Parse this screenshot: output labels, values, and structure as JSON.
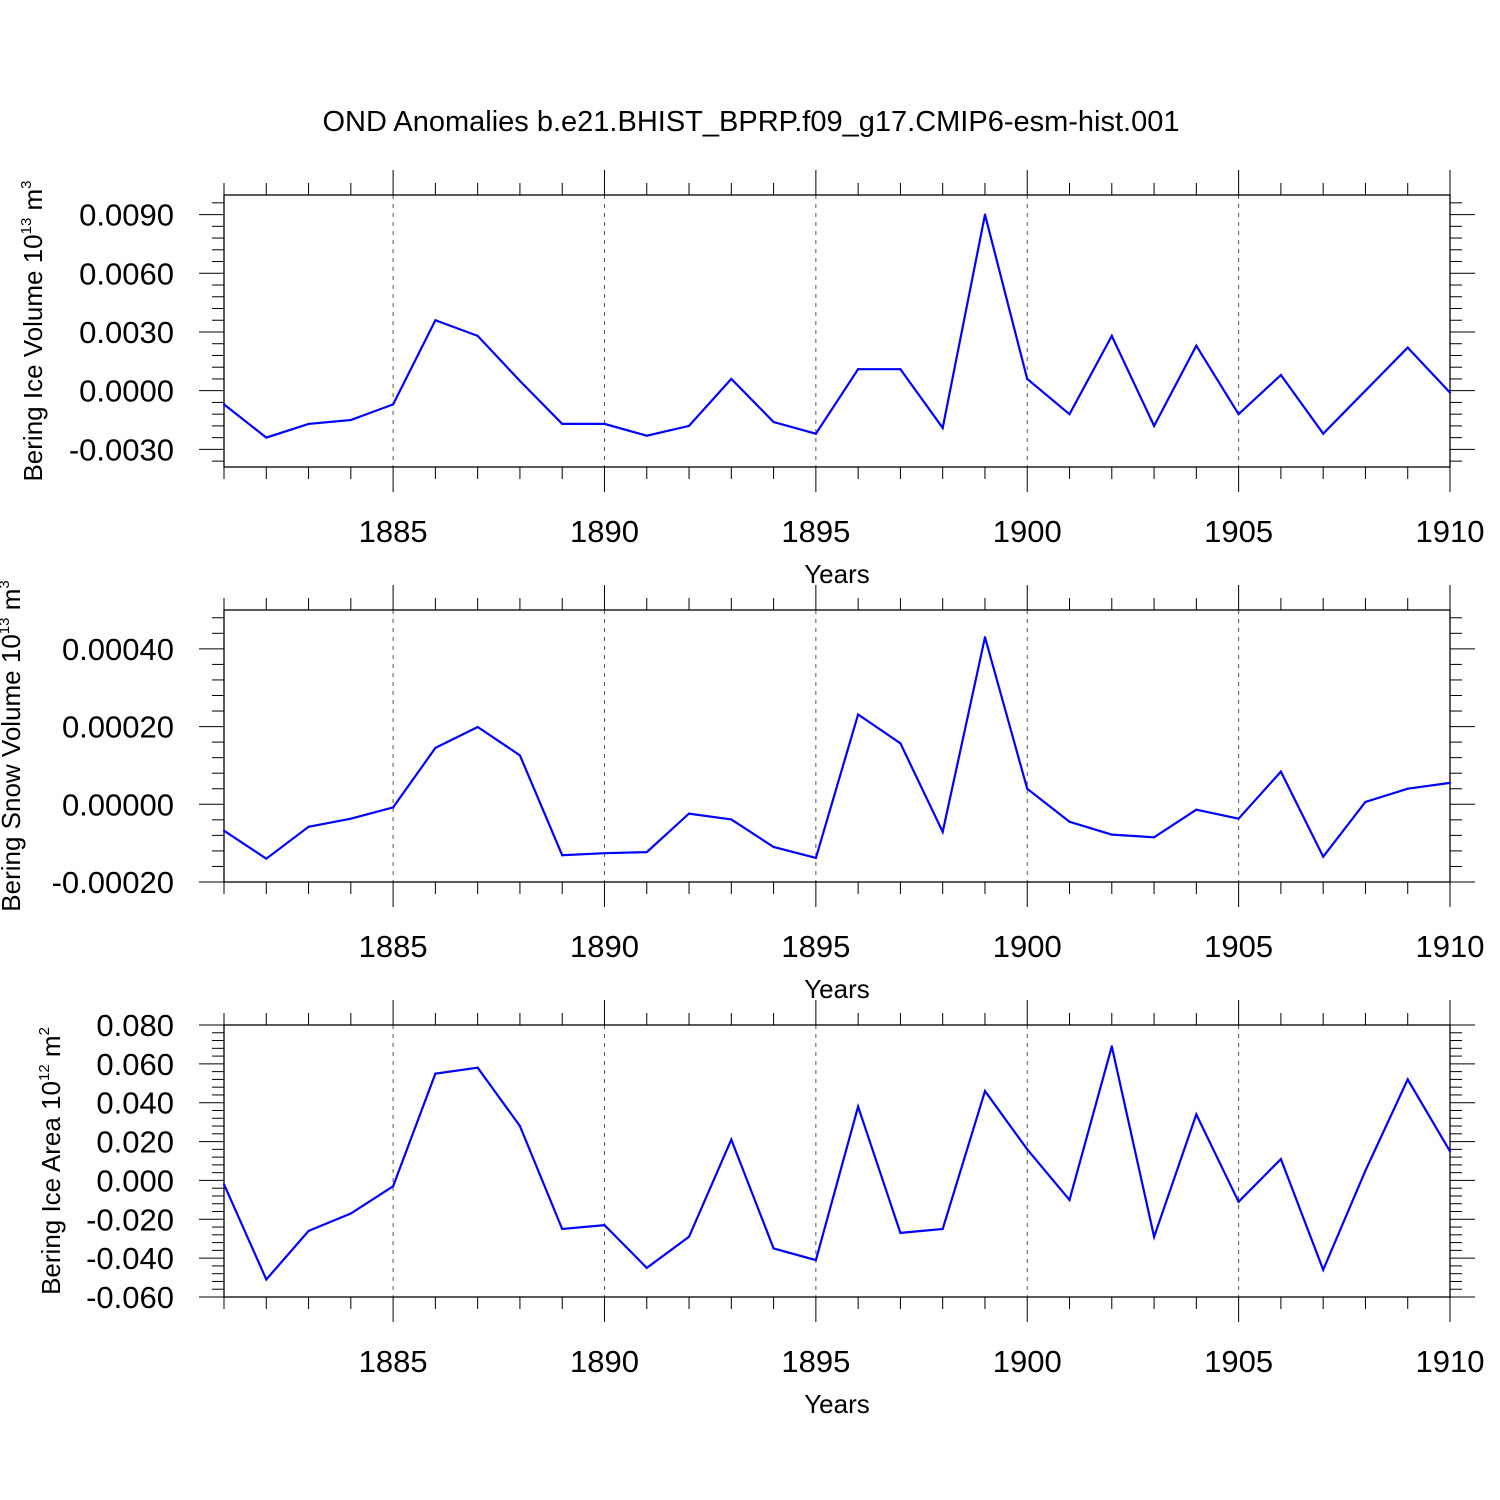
{
  "title": "OND Anomalies b.e21.BHIST_BPRP.f09_g17.CMIP6-esm-hist.001",
  "colors": {
    "series": "#0000ff",
    "axis": "#000000",
    "grid": "#555555"
  },
  "chart_data": [
    {
      "type": "line",
      "ylabel": {
        "main": "Bering Ice Volume 10",
        "sup": "13",
        "unit": " m",
        "unit_sup": "3"
      },
      "xlabel": "Years",
      "xlim": [
        1881,
        1910
      ],
      "ylim": [
        -0.0039,
        0.01
      ],
      "yticks": [
        -0.003,
        0.0,
        0.003,
        0.006,
        0.009
      ],
      "ytick_labels": [
        "-0.0030",
        "0.0000",
        "0.0030",
        "0.0060",
        "0.0090"
      ],
      "yminor_step": 0.0006,
      "xticks": [
        1885,
        1890,
        1895,
        1900,
        1905,
        1910
      ],
      "xtick_labels": [
        "1885",
        "1890",
        "1895",
        "1900",
        "1905",
        "1910"
      ],
      "x": [
        1881,
        1882,
        1883,
        1884,
        1885,
        1886,
        1887,
        1888,
        1889,
        1890,
        1891,
        1892,
        1893,
        1894,
        1895,
        1896,
        1897,
        1898,
        1899,
        1900,
        1901,
        1902,
        1903,
        1904,
        1905,
        1906,
        1907,
        1908,
        1909,
        1910
      ],
      "series": [
        {
          "name": "Bering Ice Volume",
          "values": [
            -0.0007,
            -0.0024,
            -0.0017,
            -0.0015,
            -0.0007,
            0.0036,
            0.0028,
            0.0005,
            -0.0017,
            -0.0017,
            -0.0023,
            -0.0018,
            0.0006,
            -0.0016,
            -0.0022,
            0.0011,
            0.0011,
            -0.0019,
            0.009,
            0.0006,
            -0.0012,
            0.0028,
            -0.0018,
            0.0023,
            -0.0012,
            0.0008,
            -0.0022,
            0.0,
            0.0022,
            -0.0001
          ]
        }
      ]
    },
    {
      "type": "line",
      "ylabel": {
        "main": "Bering Snow Volume 10",
        "sup": "13",
        "unit": " m",
        "unit_sup": "3"
      },
      "xlabel": "Years",
      "xlim": [
        1881,
        1910
      ],
      "ylim": [
        -0.0002,
        0.0005
      ],
      "yticks": [
        -0.0002,
        0.0,
        0.0002,
        0.0004
      ],
      "ytick_labels": [
        "-0.00020",
        "0.00000",
        "0.00020",
        "0.00040"
      ],
      "yminor_step": 4e-05,
      "xticks": [
        1885,
        1890,
        1895,
        1900,
        1905,
        1910
      ],
      "xtick_labels": [
        "1885",
        "1890",
        "1895",
        "1900",
        "1905",
        "1910"
      ],
      "x": [
        1881,
        1882,
        1883,
        1884,
        1885,
        1886,
        1887,
        1888,
        1889,
        1890,
        1891,
        1892,
        1893,
        1894,
        1895,
        1896,
        1897,
        1898,
        1899,
        1900,
        1901,
        1902,
        1903,
        1904,
        1905,
        1906,
        1907,
        1908,
        1909,
        1910
      ],
      "series": [
        {
          "name": "Bering Snow Volume",
          "values": [
            -6.8e-05,
            -0.00014,
            -5.8e-05,
            -3.7e-05,
            -8e-06,
            0.000145,
            0.000199,
            0.000126,
            -0.000131,
            -0.000126,
            -0.000123,
            -2.4e-05,
            -3.9e-05,
            -0.00011,
            -0.000138,
            0.000231,
            0.000157,
            -7.1e-05,
            0.00043,
            4e-05,
            -4.5e-05,
            -7.8e-05,
            -8.5e-05,
            -1.4e-05,
            -3.7e-05,
            8.4e-05,
            -0.000135,
            6e-06,
            4e-05,
            5.5e-05
          ]
        }
      ]
    },
    {
      "type": "line",
      "ylabel": {
        "main": "Bering Ice Area 10",
        "sup": "12",
        "unit": " m",
        "unit_sup": "2"
      },
      "xlabel": "Years",
      "xlim": [
        1881,
        1910
      ],
      "ylim": [
        -0.06,
        0.08
      ],
      "yticks": [
        -0.06,
        -0.04,
        -0.02,
        0.0,
        0.02,
        0.04,
        0.06,
        0.08
      ],
      "ytick_labels": [
        "-0.060",
        "-0.040",
        "-0.020",
        "0.000",
        "0.020",
        "0.040",
        "0.060",
        "0.080"
      ],
      "yminor_step": 0.004,
      "xticks": [
        1885,
        1890,
        1895,
        1900,
        1905,
        1910
      ],
      "xtick_labels": [
        "1885",
        "1890",
        "1895",
        "1900",
        "1905",
        "1910"
      ],
      "x": [
        1881,
        1882,
        1883,
        1884,
        1885,
        1886,
        1887,
        1888,
        1889,
        1890,
        1891,
        1892,
        1893,
        1894,
        1895,
        1896,
        1897,
        1898,
        1899,
        1900,
        1901,
        1902,
        1903,
        1904,
        1905,
        1906,
        1907,
        1908,
        1909,
        1910
      ],
      "series": [
        {
          "name": "Bering Ice Area",
          "values": [
            -0.002,
            -0.051,
            -0.026,
            -0.017,
            -0.003,
            0.055,
            0.058,
            0.028,
            -0.025,
            -0.023,
            -0.045,
            -0.029,
            0.021,
            -0.035,
            -0.041,
            0.038,
            -0.027,
            -0.025,
            0.046,
            0.016,
            -0.01,
            0.069,
            -0.029,
            0.034,
            -0.011,
            0.011,
            -0.046,
            0.005,
            0.052,
            0.015
          ]
        }
      ]
    }
  ]
}
